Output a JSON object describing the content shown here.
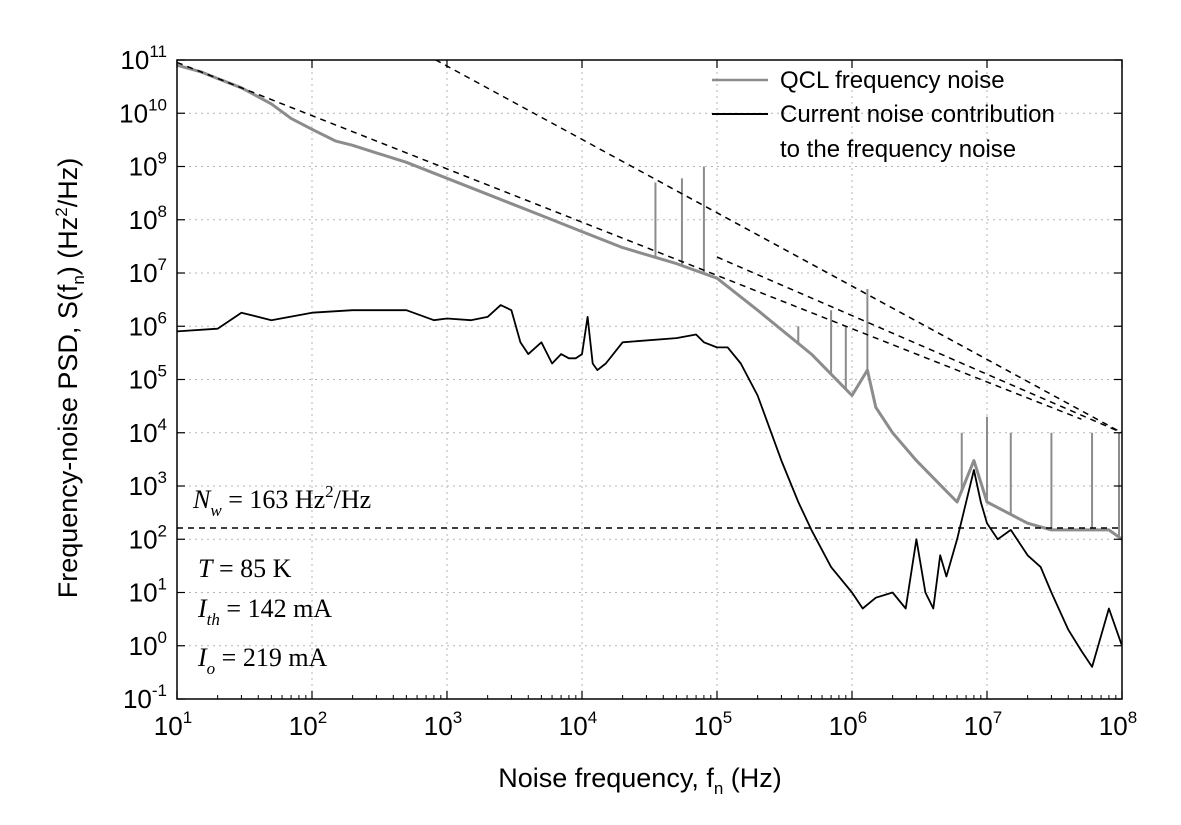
{
  "chart_data": {
    "type": "line",
    "xlabel": {
      "text": "Noise frequency, f",
      "sub": "n",
      "unit": " (Hz)"
    },
    "ylabel": {
      "text": "Frequency-noise PSD, S(f",
      "sub": "n",
      "mid": ") (Hz",
      "sup": "2",
      "end": "/Hz)"
    },
    "x_scale": "log",
    "y_scale": "log",
    "xlim": [
      10,
      100000000
    ],
    "ylim": [
      0.1,
      100000000000
    ],
    "grid": true,
    "x_ticks": [
      {
        "base": "10",
        "exp": "1",
        "value": 10
      },
      {
        "base": "10",
        "exp": "2",
        "value": 100
      },
      {
        "base": "10",
        "exp": "3",
        "value": 1000
      },
      {
        "base": "10",
        "exp": "4",
        "value": 10000
      },
      {
        "base": "10",
        "exp": "5",
        "value": 100000
      },
      {
        "base": "10",
        "exp": "6",
        "value": 1000000
      },
      {
        "base": "10",
        "exp": "7",
        "value": 10000000
      },
      {
        "base": "10",
        "exp": "8",
        "value": 100000000
      }
    ],
    "y_ticks": [
      {
        "base": "10",
        "exp": "-1",
        "value": 0.1
      },
      {
        "base": "10",
        "exp": "0",
        "value": 1
      },
      {
        "base": "10",
        "exp": "1",
        "value": 10
      },
      {
        "base": "10",
        "exp": "2",
        "value": 100
      },
      {
        "base": "10",
        "exp": "3",
        "value": 1000
      },
      {
        "base": "10",
        "exp": "4",
        "value": 10000
      },
      {
        "base": "10",
        "exp": "5",
        "value": 100000
      },
      {
        "base": "10",
        "exp": "6",
        "value": 1000000
      },
      {
        "base": "10",
        "exp": "7",
        "value": 10000000
      },
      {
        "base": "10",
        "exp": "8",
        "value": 100000000
      },
      {
        "base": "10",
        "exp": "9",
        "value": 1000000000
      },
      {
        "base": "10",
        "exp": "10",
        "value": 10000000000
      },
      {
        "base": "10",
        "exp": "11",
        "value": 100000000000
      }
    ],
    "legend_position": "top-right",
    "series": [
      {
        "name": "QCL frequency noise",
        "color": "#8c8c8c",
        "x": [
          10,
          15,
          20,
          30,
          50,
          70,
          100,
          150,
          200,
          300,
          500,
          1000,
          2000,
          3000,
          5000,
          10000,
          20000,
          50000,
          100000,
          200000,
          500000,
          1000000,
          1300000,
          1500000,
          2000000,
          3000000,
          5000000,
          6000000,
          8000000,
          10000000,
          20000000,
          30000000,
          50000000,
          80000000,
          100000000
        ],
        "y": [
          80000000000,
          60000000000,
          45000000000,
          30000000000,
          15000000000,
          8000000000,
          5000000000,
          3000000000,
          2500000000,
          1800000000,
          1200000000,
          600000000,
          300000000,
          200000000,
          120000000,
          60000000,
          30000000,
          15000000,
          8000000,
          2000000,
          300000,
          50000,
          150000,
          30000,
          10000,
          3000,
          800,
          500,
          3000,
          500,
          200,
          150,
          150,
          150,
          100
        ],
        "spikes": [
          {
            "x": 35000,
            "y": 500000000
          },
          {
            "x": 55000,
            "y": 600000000
          },
          {
            "x": 80000,
            "y": 1000000000
          },
          {
            "x": 400000,
            "y": 1000000
          },
          {
            "x": 700000,
            "y": 2000000
          },
          {
            "x": 900000,
            "y": 1000000
          },
          {
            "x": 1300000,
            "y": 5000000
          },
          {
            "x": 6500000,
            "y": 10000
          },
          {
            "x": 10000000,
            "y": 20000
          },
          {
            "x": 15000000,
            "y": 10000
          },
          {
            "x": 30000000,
            "y": 10000
          },
          {
            "x": 60000000,
            "y": 10000
          },
          {
            "x": 95000000,
            "y": 10000
          }
        ]
      },
      {
        "name": "Current noise contribution",
        "name_line2": "to the frequency noise",
        "color": "#000000",
        "x": [
          10,
          20,
          30,
          50,
          100,
          200,
          500,
          800,
          1000,
          1500,
          2000,
          2500,
          3000,
          3500,
          4000,
          5000,
          6000,
          7000,
          8000,
          9000,
          10000,
          11000,
          12000,
          13000,
          15000,
          20000,
          50000,
          70000,
          80000,
          100000,
          120000,
          150000,
          200000,
          300000,
          400000,
          500000,
          700000,
          1000000,
          1200000,
          1500000,
          2000000,
          2500000,
          3000000,
          3500000,
          4000000,
          4500000,
          5000000,
          6000000,
          8000000,
          9000000,
          10000000,
          12000000,
          15000000,
          20000000,
          25000000,
          30000000,
          40000000,
          50000000,
          60000000,
          80000000,
          100000000
        ],
        "y": [
          800000,
          900000,
          1800000,
          1300000,
          1800000,
          2000000,
          2000000,
          1300000,
          1400000,
          1300000,
          1500000,
          2500000,
          2000000,
          500000,
          300000,
          500000,
          200000,
          300000,
          250000,
          250000,
          300000,
          1500000,
          200000,
          150000,
          200000,
          500000,
          600000,
          700000,
          500000,
          400000,
          400000,
          200000,
          50000,
          3000,
          500,
          150,
          30,
          10,
          5,
          8,
          10,
          5,
          100,
          10,
          5,
          50,
          20,
          100,
          2000,
          500,
          200,
          100,
          150,
          50,
          30,
          10,
          2,
          0.8,
          0.4,
          5,
          1
        ]
      }
    ],
    "fit_lines": [
      {
        "name": "1/f",
        "points": [
          [
            10,
            90000000000
          ],
          [
            100000,
            9000000
          ],
          [
            50000000,
            18000
          ]
        ],
        "style": "dashed"
      },
      {
        "name": "1/f steep",
        "points": [
          [
            500,
            200000000000
          ],
          [
            100000000,
            10000
          ]
        ],
        "style": "dashed"
      },
      {
        "name": "upper",
        "points": [
          [
            100000,
            20000000
          ],
          [
            100000000,
            10000
          ]
        ],
        "style": "dashed"
      },
      {
        "name": "white floor",
        "points": [
          [
            10,
            163
          ],
          [
            100000000,
            163
          ]
        ],
        "style": "dashed"
      }
    ],
    "annotations": [
      {
        "sym": "N",
        "sub": "w",
        "text": " = 163 Hz",
        "sup": "2",
        "end": "/Hz"
      },
      {
        "sym": "T",
        "sub": "",
        "text": "  = 85 K",
        "sup": "",
        "end": ""
      },
      {
        "sym": "I",
        "sub": "th",
        "text": " = 142 mA",
        "sup": "",
        "end": ""
      },
      {
        "sym": "I",
        "sub": "o",
        "text": "  = 219 mA",
        "sup": "",
        "end": ""
      }
    ]
  }
}
